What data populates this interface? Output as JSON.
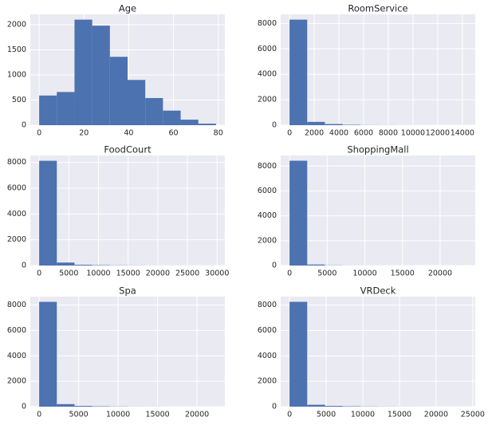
{
  "chart_data": [
    {
      "type": "histogram",
      "title": "Age",
      "color": "#4c72b0",
      "grid": true,
      "bins": [
        0,
        7.9,
        15.8,
        23.7,
        31.6,
        39.5,
        47.4,
        55.3,
        63.2,
        71.1,
        79
      ],
      "values": [
        590,
        660,
        2100,
        1980,
        1360,
        900,
        540,
        290,
        110,
        30
      ],
      "xlim": [
        -3.95,
        82.95
      ],
      "xticks": [
        0,
        20,
        40,
        60,
        80
      ],
      "ylim": [
        0,
        2205
      ],
      "yticks": [
        0,
        500,
        1000,
        1500,
        2000
      ]
    },
    {
      "type": "histogram",
      "title": "RoomService",
      "color": "#4c72b0",
      "grid": true,
      "bins": [
        0,
        1432.7,
        2865.4,
        4298.1,
        5730.8,
        7163.5,
        8596.2,
        10028.9,
        11461.6,
        12894.3,
        14327
      ],
      "values": [
        8300,
        260,
        90,
        30,
        10,
        5,
        3,
        2,
        1,
        1
      ],
      "xlim": [
        -716,
        15043
      ],
      "xticks": [
        0,
        2000,
        4000,
        6000,
        8000,
        10000,
        12000,
        14000
      ],
      "ylim": [
        0,
        8715
      ],
      "yticks": [
        0,
        2000,
        4000,
        6000,
        8000
      ]
    },
    {
      "type": "histogram",
      "title": "FoodCourt",
      "color": "#4c72b0",
      "grid": true,
      "bins": [
        0,
        2981.3,
        5962.6,
        8943.9,
        11925.2,
        14906.5,
        17887.8,
        20869.1,
        23850.4,
        26831.7,
        29813
      ],
      "values": [
        8130,
        230,
        60,
        30,
        15,
        8,
        5,
        3,
        2,
        2
      ],
      "xlim": [
        -1491,
        31304
      ],
      "xticks": [
        0,
        5000,
        10000,
        15000,
        20000,
        25000,
        30000
      ],
      "ylim": [
        0,
        8540
      ],
      "yticks": [
        0,
        2000,
        4000,
        6000,
        8000
      ]
    },
    {
      "type": "histogram",
      "title": "ShoppingMall",
      "color": "#4c72b0",
      "grid": true,
      "bins": [
        0,
        2349.2,
        4698.4,
        7047.6,
        9396.8,
        11746,
        14095.2,
        16444.4,
        18793.6,
        21142.8,
        23492
      ],
      "values": [
        8430,
        80,
        15,
        5,
        3,
        1,
        1,
        0,
        0,
        1
      ],
      "xlim": [
        -1175,
        24667
      ],
      "xticks": [
        0,
        5000,
        10000,
        15000,
        20000
      ],
      "ylim": [
        0,
        8850
      ],
      "yticks": [
        0,
        2000,
        4000,
        6000,
        8000
      ]
    },
    {
      "type": "histogram",
      "title": "Spa",
      "color": "#4c72b0",
      "grid": true,
      "bins": [
        0,
        2240.8,
        4481.6,
        6722.4,
        8963.2,
        11204,
        13444.8,
        15685.6,
        17926.4,
        20167.2,
        22408
      ],
      "values": [
        8250,
        200,
        60,
        30,
        15,
        7,
        4,
        2,
        1,
        1
      ],
      "xlim": [
        -1120,
        23528
      ],
      "xticks": [
        0,
        5000,
        10000,
        15000,
        20000
      ],
      "ylim": [
        0,
        8660
      ],
      "yticks": [
        0,
        2000,
        4000,
        6000,
        8000
      ]
    },
    {
      "type": "histogram",
      "title": "VRDeck",
      "color": "#4c72b0",
      "grid": true,
      "bins": [
        0,
        2413.3,
        4826.6,
        7239.9,
        9653.2,
        12066.5,
        14479.8,
        16893.1,
        19306.4,
        21719.7,
        24133
      ],
      "values": [
        8260,
        150,
        60,
        30,
        15,
        8,
        5,
        3,
        1,
        1
      ],
      "xlim": [
        -1207,
        25340
      ],
      "xticks": [
        0,
        5000,
        10000,
        15000,
        20000,
        25000
      ],
      "ylim": [
        0,
        8670
      ],
      "yticks": [
        0,
        2000,
        4000,
        6000,
        8000
      ]
    }
  ]
}
